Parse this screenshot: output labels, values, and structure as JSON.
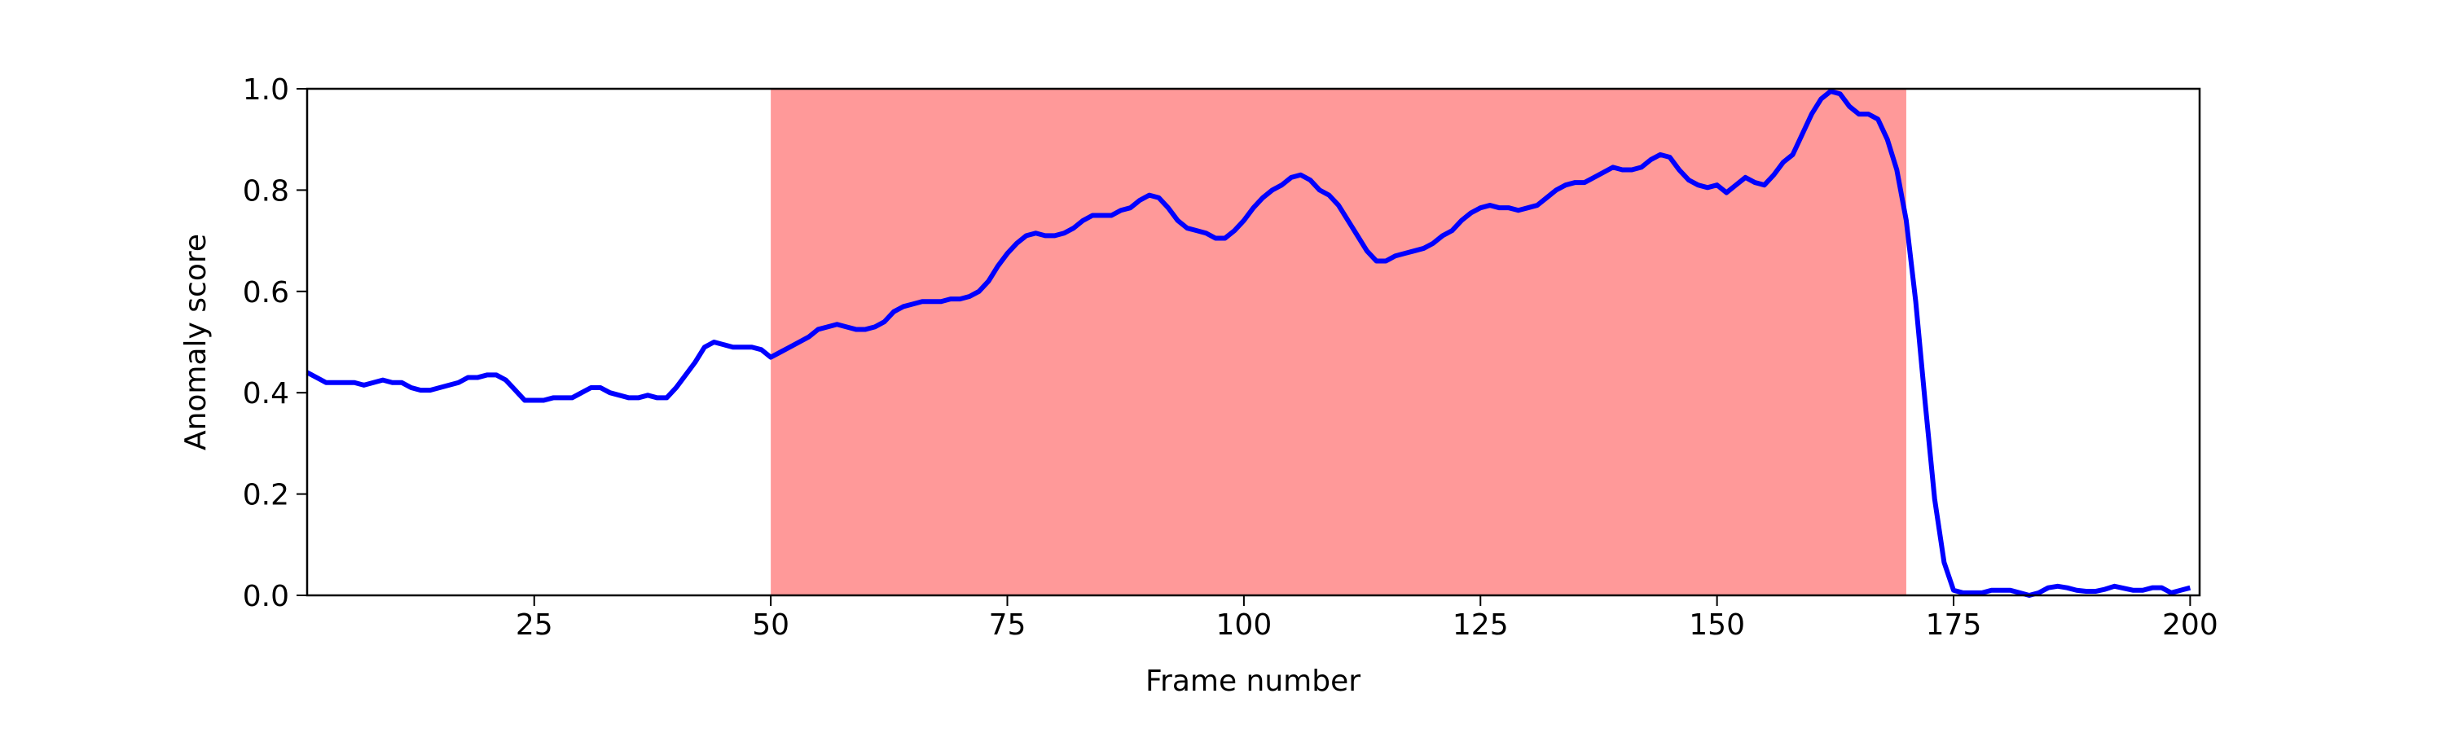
{
  "chart_data": {
    "type": "line",
    "xlabel": "Frame number",
    "ylabel": "Anomaly score",
    "x": [
      1,
      2,
      3,
      4,
      5,
      6,
      7,
      8,
      9,
      10,
      11,
      12,
      13,
      14,
      15,
      16,
      17,
      18,
      19,
      20,
      21,
      22,
      23,
      24,
      25,
      26,
      27,
      28,
      29,
      30,
      31,
      32,
      33,
      34,
      35,
      36,
      37,
      38,
      39,
      40,
      41,
      42,
      43,
      44,
      45,
      46,
      47,
      48,
      49,
      50,
      51,
      52,
      53,
      54,
      55,
      56,
      57,
      58,
      59,
      60,
      61,
      62,
      63,
      64,
      65,
      66,
      67,
      68,
      69,
      70,
      71,
      72,
      73,
      74,
      75,
      76,
      77,
      78,
      79,
      80,
      81,
      82,
      83,
      84,
      85,
      86,
      87,
      88,
      89,
      90,
      91,
      92,
      93,
      94,
      95,
      96,
      97,
      98,
      99,
      100,
      101,
      102,
      103,
      104,
      105,
      106,
      107,
      108,
      109,
      110,
      111,
      112,
      113,
      114,
      115,
      116,
      117,
      118,
      119,
      120,
      121,
      122,
      123,
      124,
      125,
      126,
      127,
      128,
      129,
      130,
      131,
      132,
      133,
      134,
      135,
      136,
      137,
      138,
      139,
      140,
      141,
      142,
      143,
      144,
      145,
      146,
      147,
      148,
      149,
      150,
      151,
      152,
      153,
      154,
      155,
      156,
      157,
      158,
      159,
      160,
      161,
      162,
      163,
      164,
      165,
      166,
      167,
      168,
      169,
      170,
      171,
      172,
      173,
      174,
      175,
      176,
      177,
      178,
      179,
      180,
      181,
      182,
      183,
      184,
      185,
      186,
      187,
      188,
      189,
      190,
      191,
      192,
      193,
      194,
      195,
      196,
      197,
      198,
      199,
      200
    ],
    "series": [
      {
        "color": "#0000ff",
        "values": [
          0.44,
          0.43,
          0.42,
          0.42,
          0.42,
          0.42,
          0.415,
          0.42,
          0.425,
          0.42,
          0.42,
          0.41,
          0.405,
          0.405,
          0.41,
          0.415,
          0.42,
          0.43,
          0.43,
          0.435,
          0.435,
          0.425,
          0.405,
          0.385,
          0.385,
          0.385,
          0.39,
          0.39,
          0.39,
          0.4,
          0.41,
          0.41,
          0.4,
          0.395,
          0.39,
          0.39,
          0.395,
          0.39,
          0.39,
          0.41,
          0.435,
          0.46,
          0.49,
          0.5,
          0.495,
          0.49,
          0.49,
          0.49,
          0.485,
          0.47,
          0.48,
          0.49,
          0.5,
          0.51,
          0.525,
          0.53,
          0.535,
          0.53,
          0.525,
          0.525,
          0.53,
          0.54,
          0.56,
          0.57,
          0.575,
          0.58,
          0.58,
          0.58,
          0.585,
          0.585,
          0.59,
          0.6,
          0.62,
          0.65,
          0.675,
          0.695,
          0.71,
          0.715,
          0.71,
          0.71,
          0.715,
          0.725,
          0.74,
          0.75,
          0.75,
          0.75,
          0.76,
          0.765,
          0.78,
          0.79,
          0.785,
          0.765,
          0.74,
          0.725,
          0.72,
          0.715,
          0.705,
          0.705,
          0.72,
          0.74,
          0.765,
          0.785,
          0.8,
          0.81,
          0.825,
          0.83,
          0.82,
          0.8,
          0.79,
          0.77,
          0.74,
          0.71,
          0.68,
          0.66,
          0.66,
          0.67,
          0.675,
          0.68,
          0.685,
          0.695,
          0.71,
          0.72,
          0.74,
          0.755,
          0.765,
          0.77,
          0.765,
          0.765,
          0.76,
          0.765,
          0.77,
          0.785,
          0.8,
          0.81,
          0.815,
          0.815,
          0.825,
          0.835,
          0.845,
          0.84,
          0.84,
          0.845,
          0.86,
          0.87,
          0.865,
          0.84,
          0.82,
          0.81,
          0.805,
          0.81,
          0.795,
          0.81,
          0.825,
          0.815,
          0.81,
          0.83,
          0.855,
          0.87,
          0.91,
          0.95,
          0.98,
          0.995,
          0.99,
          0.965,
          0.95,
          0.95,
          0.94,
          0.9,
          0.84,
          0.74,
          0.58,
          0.38,
          0.19,
          0.065,
          0.01,
          0.005,
          0.005,
          0.005,
          0.01,
          0.01,
          0.01,
          0.005,
          0.0,
          0.005,
          0.015,
          0.018,
          0.015,
          0.01,
          0.008,
          0.008,
          0.012,
          0.018,
          0.014,
          0.01,
          0.01,
          0.015,
          0.015,
          0.005,
          0.01,
          0.015
        ]
      }
    ],
    "shade": {
      "xmin": 50,
      "xmax": 170,
      "color": "#ff9999"
    },
    "xlim": [
      1,
      201
    ],
    "xticks": [
      25,
      50,
      75,
      100,
      125,
      150,
      175,
      200
    ],
    "ylim": [
      0,
      1
    ],
    "yticks": [
      {
        "value": 0,
        "label": "0.0"
      },
      0.2,
      0.4,
      0.6,
      0.8,
      {
        "value": 1,
        "label": "1.0"
      }
    ],
    "grid": false
  }
}
